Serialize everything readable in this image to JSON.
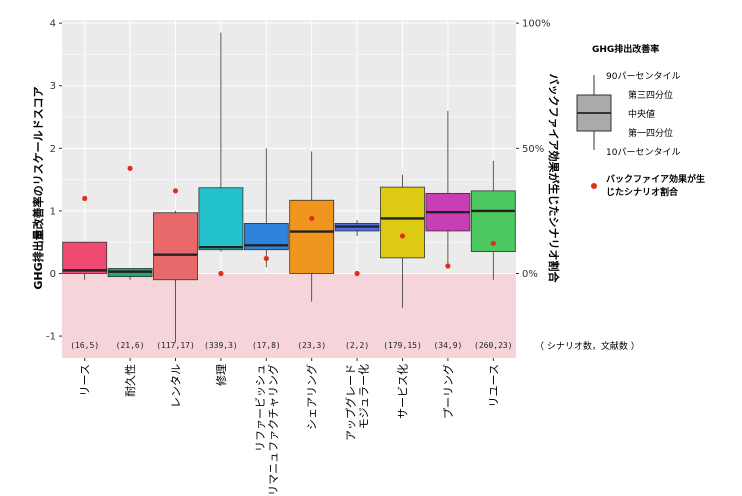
{
  "chart_data": {
    "type": "box",
    "categories": [
      "リース",
      "耐久性",
      "レンタル",
      "修理",
      "リファービッシュ\nリマニュファクチャリング",
      "シェアリング",
      "アップグレード\nモジュラー化",
      "サービス化",
      "プーリング",
      "リユース"
    ],
    "counts": [
      "(16,5)",
      "(21,6)",
      "(117,17)",
      "(339,3)",
      "(17,8)",
      "(23,3)",
      "(2,2)",
      "(179,15)",
      "(34,9)",
      "(260,23)"
    ],
    "boxes": [
      {
        "p10": -0.1,
        "q1": 0.0,
        "median": 0.05,
        "q3": 0.5,
        "p90": 0.5,
        "color": "#F04B73"
      },
      {
        "p10": -0.1,
        "q1": -0.05,
        "median": 0.03,
        "q3": 0.08,
        "p90": 0.08,
        "color": "#22AA6E"
      },
      {
        "p10": -1.1,
        "q1": -0.1,
        "median": 0.3,
        "q3": 0.97,
        "p90": 1.0,
        "color": "#E8696A"
      },
      {
        "p10": 0.35,
        "q1": 0.38,
        "median": 0.42,
        "q3": 1.37,
        "p90": 3.85,
        "color": "#22C1CB"
      },
      {
        "p10": 0.1,
        "q1": 0.38,
        "median": 0.45,
        "q3": 0.8,
        "p90": 2.0,
        "color": "#2E84DB"
      },
      {
        "p10": -0.45,
        "q1": 0.0,
        "median": 0.67,
        "q3": 1.17,
        "p90": 1.95,
        "color": "#F0961E"
      },
      {
        "p10": 0.6,
        "q1": 0.68,
        "median": 0.75,
        "q3": 0.8,
        "p90": 0.85,
        "color": "#4A6FE3"
      },
      {
        "p10": -0.55,
        "q1": 0.25,
        "median": 0.88,
        "q3": 1.38,
        "p90": 1.58,
        "color": "#DCCB12"
      },
      {
        "p10": 0.1,
        "q1": 0.68,
        "median": 0.98,
        "q3": 1.28,
        "p90": 2.6,
        "color": "#C83FB5"
      },
      {
        "p10": -0.1,
        "q1": 0.35,
        "median": 1.0,
        "q3": 1.32,
        "p90": 1.8,
        "color": "#4DC760"
      }
    ],
    "backfire_pct": [
      30,
      42,
      33,
      0,
      6,
      22,
      0,
      15,
      3,
      12
    ],
    "y_left": {
      "min": -1.35,
      "max": 4.05,
      "ticks": [
        -1,
        0,
        1,
        2,
        3,
        4
      ]
    },
    "y_right": {
      "ticks": [
        0,
        50,
        100
      ],
      "tick_labels": [
        "0%",
        "50%",
        "100%"
      ]
    },
    "ylabel_left": "GHG排出量改善率のリスケールドスコア",
    "ylabel_right": "バックファイア効果が生じたシナリオ割合",
    "count_note": "（ シナリオ数，文献数 ）",
    "legend": {
      "title": "GHG排出改善率",
      "p90": "90パーセンタイル",
      "q3": "第三四分位",
      "median": "中央値",
      "q1": "第一四分位",
      "p10": "10パーセンタイル",
      "backfire": "バックファイア効果が生\nじたシナリオ割合"
    },
    "colors": {
      "panel": "#EBEBEB",
      "grid": "#FFFFFF",
      "negative_band": "#F5D5DA",
      "dot": "#E32D1E"
    }
  }
}
